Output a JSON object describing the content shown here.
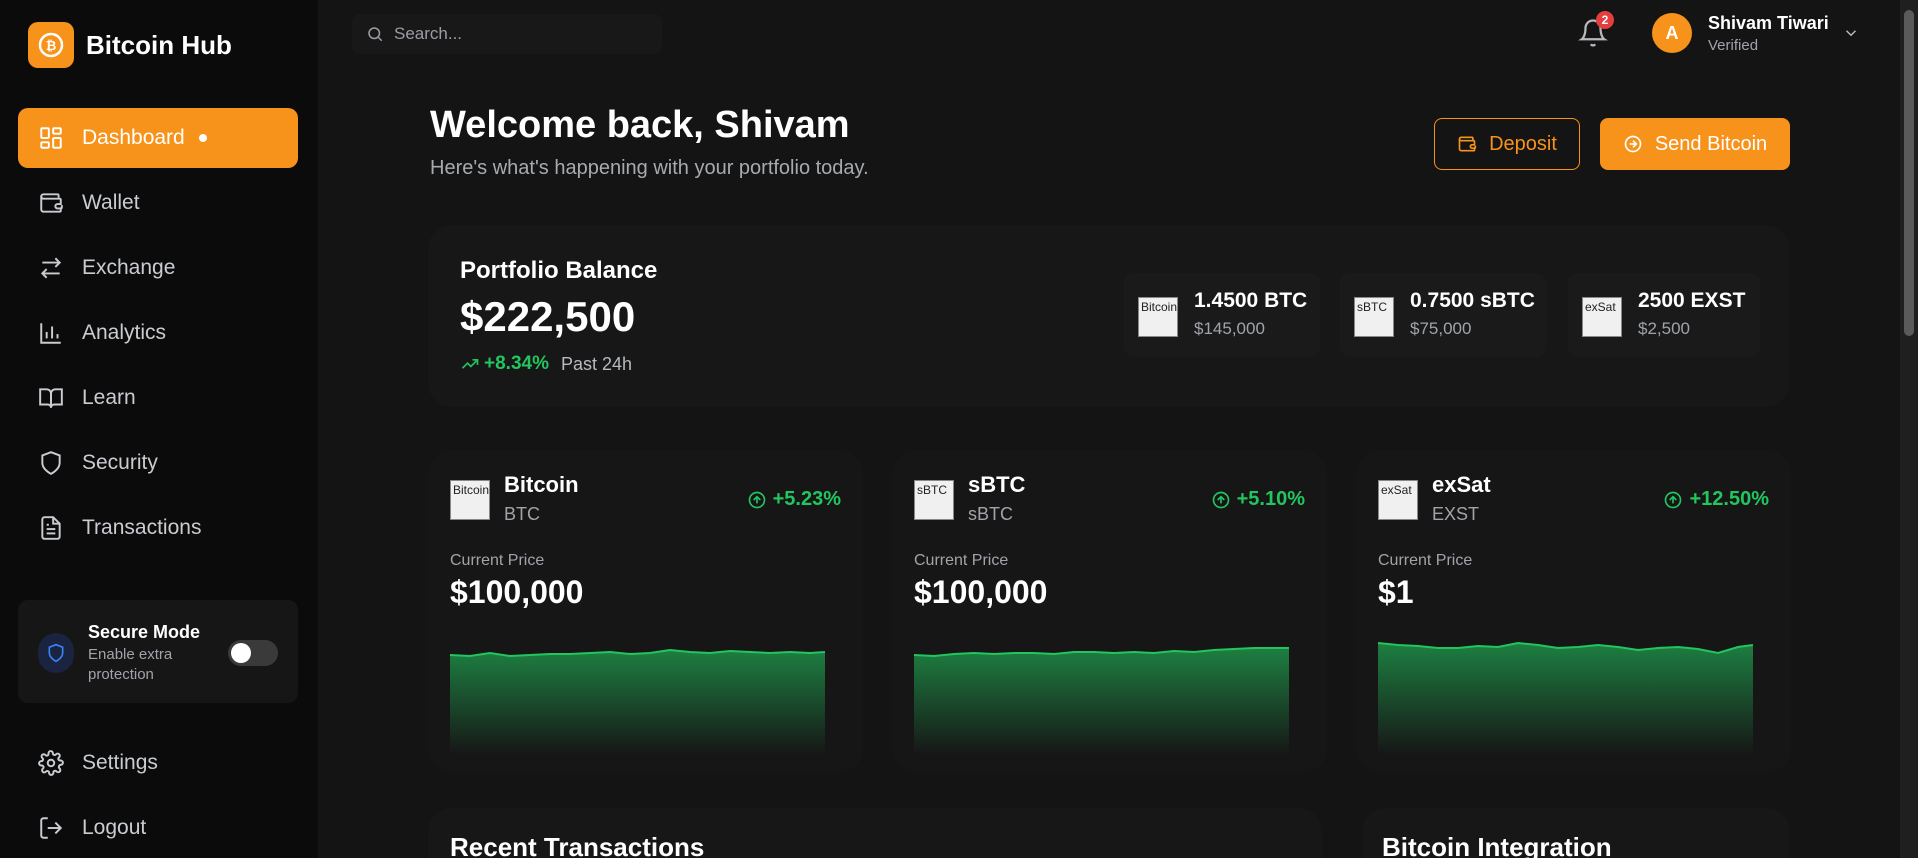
{
  "brand": {
    "name": "Bitcoin Hub",
    "accent": "#f7931a"
  },
  "sidebar": {
    "items": [
      {
        "label": "Dashboard",
        "icon": "dashboard-icon",
        "active": true
      },
      {
        "label": "Wallet",
        "icon": "wallet-icon"
      },
      {
        "label": "Exchange",
        "icon": "exchange-icon"
      },
      {
        "label": "Analytics",
        "icon": "analytics-icon"
      },
      {
        "label": "Learn",
        "icon": "book-icon"
      },
      {
        "label": "Security",
        "icon": "shield-icon"
      },
      {
        "label": "Transactions",
        "icon": "document-icon"
      }
    ],
    "secure_mode": {
      "title": "Secure Mode",
      "subtitle": "Enable extra protection",
      "enabled": false
    },
    "bottom": [
      {
        "label": "Settings",
        "icon": "gear-icon"
      },
      {
        "label": "Logout",
        "icon": "logout-icon"
      }
    ]
  },
  "topbar": {
    "search_placeholder": "Search...",
    "notifications_count": "2",
    "user": {
      "initial": "A",
      "name": "Shivam Tiwari",
      "status": "Verified"
    }
  },
  "header": {
    "title": "Welcome back, Shivam",
    "subtitle": "Here's what's happening with your portfolio today.",
    "deposit_label": "Deposit",
    "send_label": "Send Bitcoin"
  },
  "portfolio": {
    "title": "Portfolio Balance",
    "balance": "$222,500",
    "change": "+8.34%",
    "period": "Past 24h",
    "holdings": [
      {
        "amount": "1.4500 BTC",
        "usd": "$145,000",
        "img_alt": "Bitcoin"
      },
      {
        "amount": "0.7500 sBTC",
        "usd": "$75,000",
        "img_alt": "sBTC"
      },
      {
        "amount": "2500 EXST",
        "usd": "$2,500",
        "img_alt": "exSat"
      }
    ]
  },
  "coins": [
    {
      "name": "Bitcoin",
      "symbol": "BTC",
      "change": "+5.23%",
      "price_label": "Current Price",
      "price": "$100,000",
      "img_alt": "Bitcoin"
    },
    {
      "name": "sBTC",
      "symbol": "sBTC",
      "change": "+5.10%",
      "price_label": "Current Price",
      "price": "$100,000",
      "img_alt": "sBTC"
    },
    {
      "name": "exSat",
      "symbol": "EXST",
      "change": "+12.50%",
      "price_label": "Current Price",
      "price": "$1",
      "img_alt": "exSat"
    }
  ],
  "sections": {
    "recent_title": "Recent Transactions",
    "integration_title": "Bitcoin Integration"
  },
  "colors": {
    "positive": "#22c55e",
    "accent": "#f7931a",
    "badge": "#e53e3e"
  }
}
